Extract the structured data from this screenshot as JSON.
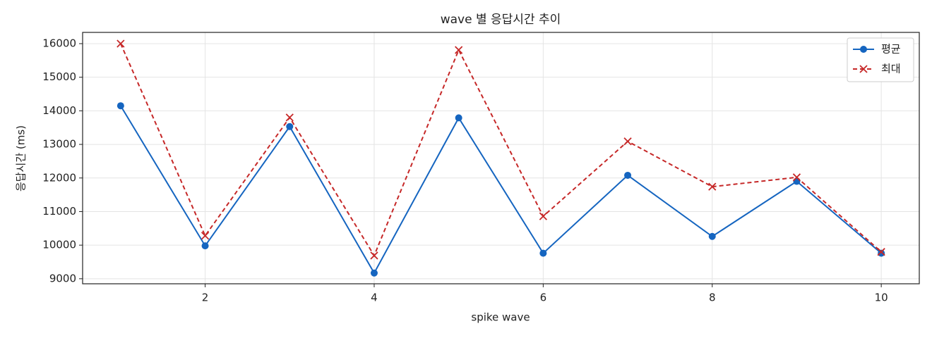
{
  "chart_data": {
    "type": "line",
    "title": "wave 별 응답시간 추이",
    "x_label": "spike wave",
    "y_label": "응답시간 (ms)",
    "x": [
      1,
      2,
      3,
      4,
      5,
      6,
      7,
      8,
      9,
      10
    ],
    "series": [
      {
        "name": "평균",
        "color": "#1565c0",
        "marker": "circle",
        "linestyle": "solid",
        "values": [
          14150,
          9980,
          13530,
          9170,
          13790,
          9760,
          12080,
          10260,
          11900,
          9760
        ]
      },
      {
        "name": "최대",
        "color": "#c62828",
        "marker": "x",
        "linestyle": "dashed",
        "values": [
          16000,
          10280,
          13800,
          9690,
          15810,
          10860,
          13090,
          11740,
          12020,
          9800
        ]
      }
    ],
    "xlim": [
      0.55,
      10.45
    ],
    "xticks": [
      2,
      4,
      6,
      8,
      10
    ],
    "ylim": [
      8850,
      16335
    ],
    "yticks": [
      9000,
      10000,
      11000,
      12000,
      13000,
      14000,
      15000,
      16000
    ],
    "grid": true,
    "legend": "upper right"
  }
}
